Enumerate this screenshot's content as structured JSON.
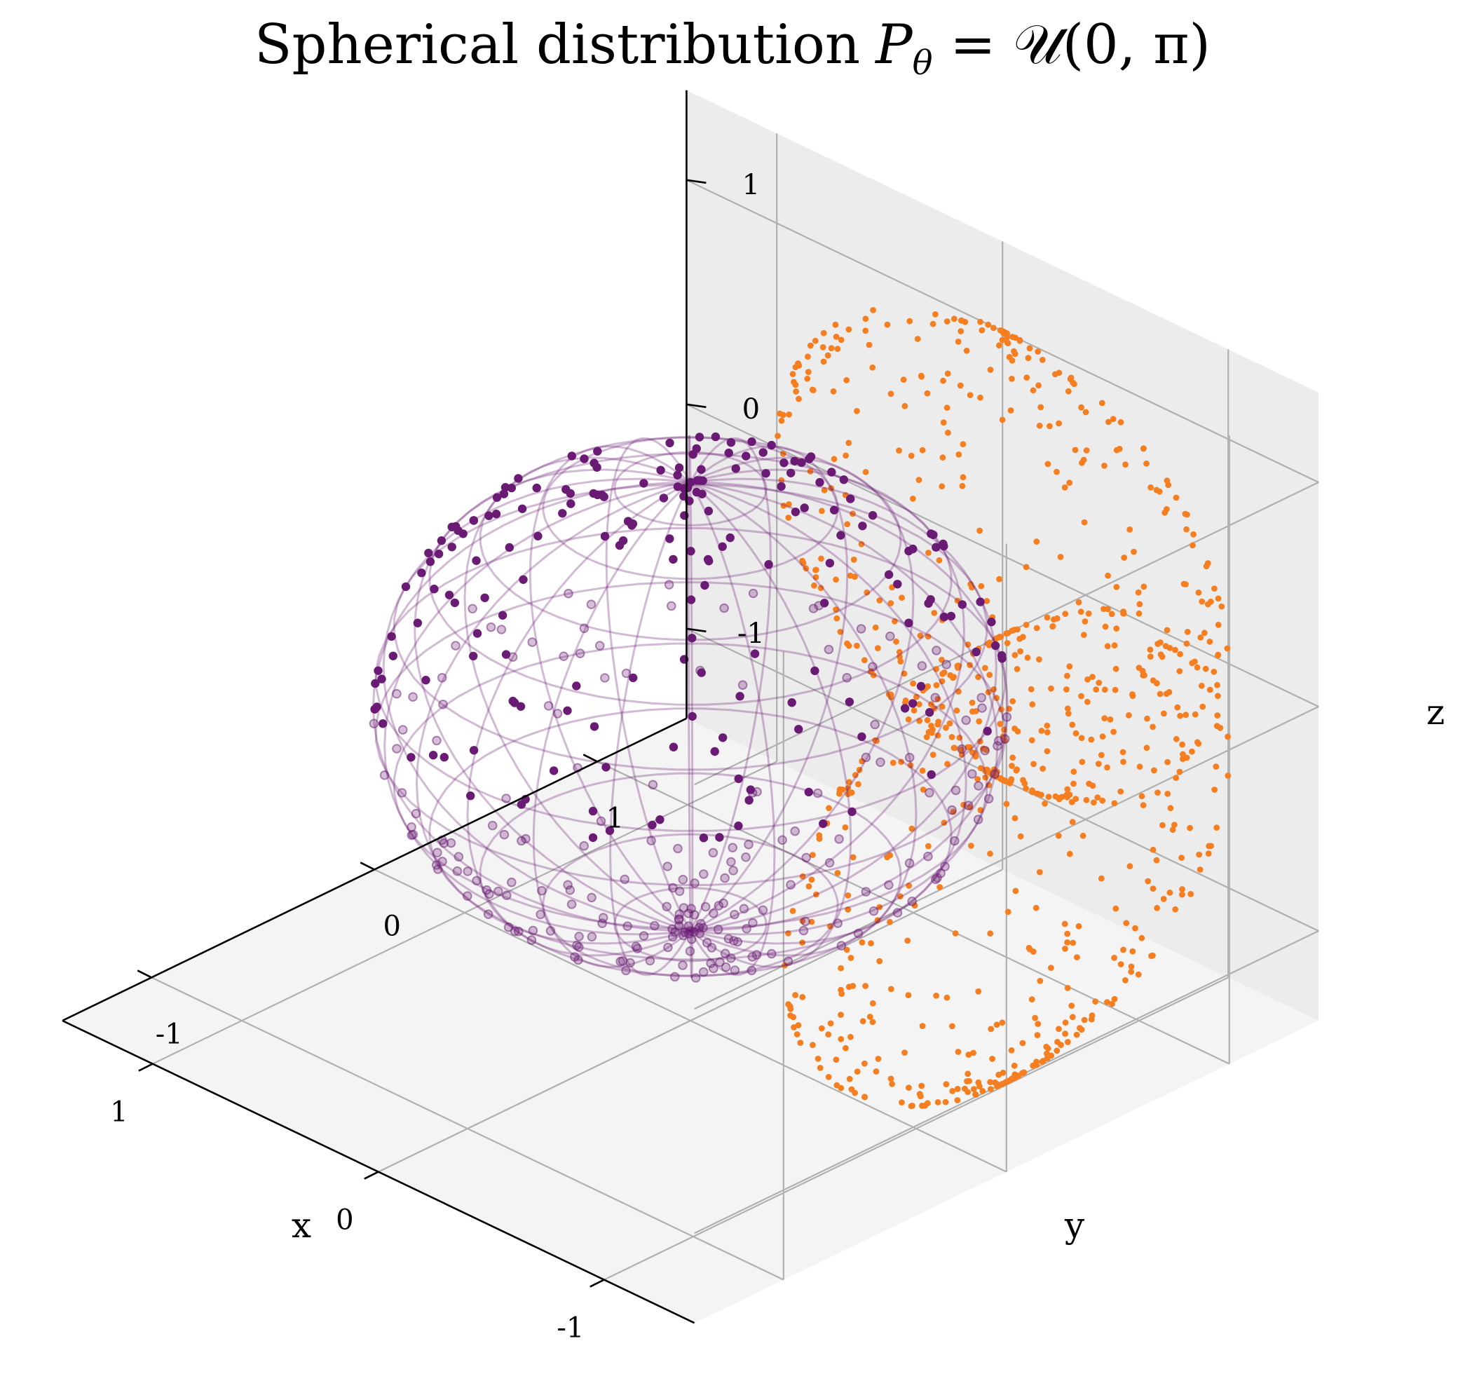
{
  "chart_data": {
    "type": "scatter",
    "title": "Spherical distribution",
    "title_math": "P",
    "title_math_sub": "θ",
    "title_math_rest": " = 𝒰(0, π)",
    "xlabel": "x",
    "ylabel": "y",
    "zlabel": "z",
    "xlim": [
      -1.4,
      1.4
    ],
    "ylim": [
      -1.4,
      1.4
    ],
    "zlim": [
      -1.4,
      1.4
    ],
    "xticks": [
      -1,
      0,
      1
    ],
    "yticks": [
      -1,
      0,
      1
    ],
    "zticks": [
      -1,
      0,
      1
    ],
    "xtick_labels": [
      "-1",
      "0",
      "1"
    ],
    "ytick_labels": [
      "-1",
      "0",
      "1"
    ],
    "ztick_labels": [
      "-1",
      "0",
      "1"
    ],
    "grid": true,
    "sphere": {
      "radius": 1,
      "wireframe": true
    },
    "series": [
      {
        "role": "sphere-points",
        "color": "#6a1b74",
        "count": 420,
        "theta_distribution": [
          0,
          3.14159
        ],
        "phi_distribution": [
          0,
          6.28319
        ]
      },
      {
        "role": "wall-projections",
        "color": "#f57f20",
        "planes": [
          "x = -1.4",
          "y = 1.4"
        ]
      }
    ],
    "colors": {
      "sphere": "#6a1b74",
      "projection": "#f57f20",
      "pane_back": "#f2f2f2",
      "pane_floor": "#ececec"
    }
  }
}
